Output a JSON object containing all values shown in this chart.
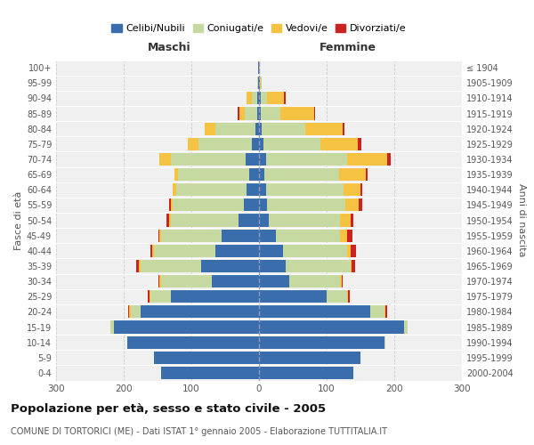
{
  "age_groups": [
    "0-4",
    "5-9",
    "10-14",
    "15-19",
    "20-24",
    "25-29",
    "30-34",
    "35-39",
    "40-44",
    "45-49",
    "50-54",
    "55-59",
    "60-64",
    "65-69",
    "70-74",
    "75-79",
    "80-84",
    "85-89",
    "90-94",
    "95-99",
    "100+"
  ],
  "birth_years": [
    "2000-2004",
    "1995-1999",
    "1990-1994",
    "1985-1989",
    "1980-1984",
    "1975-1979",
    "1970-1974",
    "1965-1969",
    "1960-1964",
    "1955-1959",
    "1950-1954",
    "1945-1949",
    "1940-1944",
    "1935-1939",
    "1930-1934",
    "1925-1929",
    "1920-1924",
    "1915-1919",
    "1910-1914",
    "1905-1909",
    "≤ 1904"
  ],
  "maschi": {
    "celibi": [
      145,
      155,
      195,
      215,
      175,
      130,
      70,
      85,
      65,
      55,
      30,
      22,
      18,
      15,
      20,
      10,
      5,
      3,
      2,
      1,
      1
    ],
    "coniugati": [
      0,
      0,
      0,
      5,
      15,
      30,
      75,
      90,
      90,
      90,
      100,
      105,
      105,
      105,
      110,
      80,
      60,
      18,
      8,
      1,
      0
    ],
    "vedovi": [
      0,
      0,
      0,
      0,
      2,
      2,
      2,
      2,
      3,
      2,
      3,
      3,
      5,
      5,
      18,
      15,
      15,
      8,
      8,
      0,
      0
    ],
    "divorziati": [
      0,
      0,
      0,
      0,
      2,
      2,
      2,
      4,
      3,
      2,
      4,
      3,
      0,
      0,
      0,
      0,
      0,
      2,
      0,
      0,
      0
    ]
  },
  "femmine": {
    "nubili": [
      140,
      150,
      185,
      215,
      165,
      100,
      45,
      40,
      35,
      25,
      15,
      12,
      10,
      8,
      10,
      6,
      4,
      3,
      2,
      1,
      0
    ],
    "coniugate": [
      0,
      0,
      2,
      5,
      20,
      30,
      75,
      95,
      95,
      95,
      105,
      115,
      115,
      110,
      120,
      85,
      65,
      28,
      10,
      1,
      0
    ],
    "vedove": [
      0,
      0,
      0,
      0,
      2,
      2,
      2,
      2,
      5,
      10,
      15,
      20,
      25,
      40,
      60,
      55,
      55,
      50,
      25,
      2,
      1
    ],
    "divorziate": [
      0,
      0,
      0,
      0,
      3,
      2,
      2,
      5,
      8,
      8,
      5,
      5,
      3,
      3,
      5,
      5,
      2,
      2,
      2,
      0,
      0
    ]
  },
  "colors": {
    "celibi": "#3a6dab",
    "coniugati": "#c5d9a0",
    "vedovi": "#f5c242",
    "divorziati": "#cc2222"
  },
  "legend_labels": [
    "Celibi/Nubili",
    "Coniugati/e",
    "Vedovi/e",
    "Divorziati/e"
  ],
  "title": "Popolazione per età, sesso e stato civile - 2005",
  "subtitle": "COMUNE DI TORTORICI (ME) - Dati ISTAT 1° gennaio 2005 - Elaborazione TUTTITALIA.IT",
  "xlabel_left": "Maschi",
  "xlabel_right": "Femmine",
  "ylabel_left": "Fasce di età",
  "ylabel_right": "Anni di nascita",
  "xlim": 300,
  "bg_color": "#f0f0f0"
}
